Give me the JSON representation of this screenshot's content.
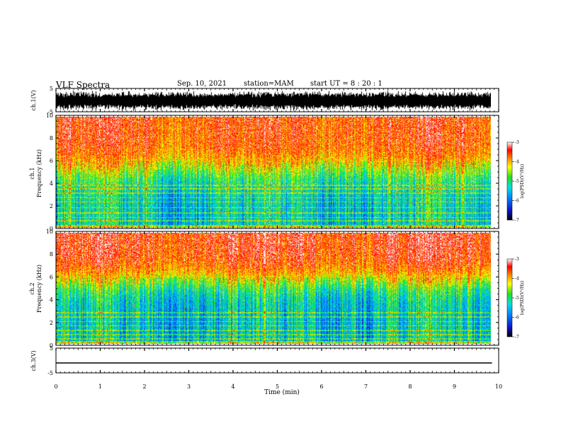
{
  "header": {
    "title": "VLF Spectra",
    "date": "Sep. 10, 2021",
    "station": "station=MAM",
    "start": "start UT =  8 : 20 : 1"
  },
  "chart_data": [
    {
      "type": "line",
      "panel": "ch1-waveform",
      "ylabel": "ch.1(V)",
      "ylim": [
        -5,
        5
      ],
      "yticks": [
        "5",
        "-5"
      ],
      "xlim": [
        0,
        10
      ],
      "description_of_signal": "dense noise spanning most of range"
    },
    {
      "type": "heatmap",
      "panel": "ch1-spectrogram",
      "ylabel": "ch.1\nFrequency (kHz)",
      "ylabel_line1": "ch.1",
      "ylabel_line2": "Frequency (kHz)",
      "ylim": [
        0,
        10
      ],
      "yticks": [
        "0",
        "2",
        "4",
        "6",
        "8",
        "10"
      ],
      "xlim": [
        0,
        9.85
      ],
      "colorbar": {
        "label": "log(PSD)(V²/Hz)",
        "range": [
          -7,
          -3
        ],
        "ticks": [
          "-3",
          "-4",
          "-5",
          "-6",
          "-7"
        ]
      }
    },
    {
      "type": "heatmap",
      "panel": "ch2-spectrogram",
      "ylabel_line1": "ch.2",
      "ylabel_line2": "Frequency (kHz)",
      "ylim": [
        0,
        10
      ],
      "yticks": [
        "0",
        "2",
        "4",
        "6",
        "8",
        "10"
      ],
      "xlim": [
        0,
        9.85
      ],
      "colorbar": {
        "label": "log(PSD)(V²/Hz)",
        "range": [
          -7,
          -3
        ],
        "ticks": [
          "-3",
          "-4",
          "-5",
          "-6",
          "-7"
        ]
      }
    },
    {
      "type": "line",
      "panel": "ch3-waveform",
      "ylabel": "ch.3(V)",
      "ylim": [
        -5,
        5
      ],
      "yticks": [
        "5",
        "-5"
      ],
      "series": [
        {
          "x": [
            0,
            9.85
          ],
          "y": [
            -1,
            -1
          ]
        }
      ]
    }
  ],
  "xaxis": {
    "label": "Time (min)",
    "range": [
      0,
      10
    ],
    "ticks": [
      "0",
      "1",
      "2",
      "3",
      "4",
      "5",
      "6",
      "7",
      "8",
      "9",
      "10"
    ]
  },
  "colors": {
    "ink": "#000000",
    "background": "#ffffff"
  }
}
